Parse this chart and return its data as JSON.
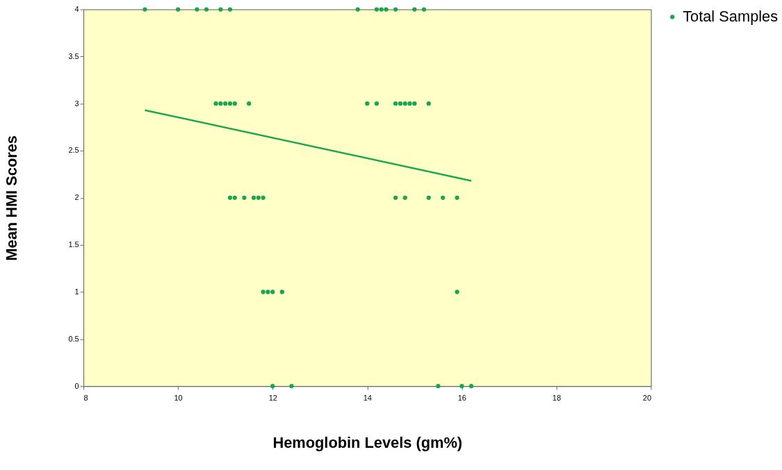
{
  "chart_data": {
    "type": "scatter",
    "xlabel": "Hemoglobin Levels (gm%)",
    "ylabel": "Mean HMI Scores",
    "xlim": [
      8,
      20
    ],
    "xticks": [
      8,
      10,
      12,
      14,
      16,
      18,
      20
    ],
    "ylim": [
      0,
      4
    ],
    "yticks": [
      0,
      0.5,
      1,
      1.5,
      2,
      2.5,
      3,
      3.5,
      4
    ],
    "grid": false,
    "legend": "right",
    "series": [
      {
        "name": "Total Samples",
        "color": "#1aa64f",
        "marker": "circle",
        "x": [
          9.3,
          10.0,
          10.4,
          10.6,
          10.9,
          11.1,
          13.8,
          14.2,
          14.3,
          14.4,
          14.6,
          15.0,
          15.2,
          10.8,
          10.9,
          11.0,
          11.1,
          11.2,
          11.5,
          14.0,
          14.2,
          14.6,
          14.7,
          14.8,
          14.9,
          15.0,
          15.3,
          11.1,
          11.2,
          11.4,
          11.6,
          11.7,
          11.8,
          14.6,
          14.8,
          15.3,
          15.6,
          15.9,
          11.8,
          11.9,
          12.0,
          12.2,
          15.9,
          12.0,
          12.4,
          15.5,
          16.0,
          16.2
        ],
        "values": [
          4,
          4,
          4,
          4,
          4,
          4,
          4,
          4,
          4,
          4,
          4,
          4,
          4,
          3,
          3,
          3,
          3,
          3,
          3,
          3,
          3,
          3,
          3,
          3,
          3,
          3,
          3,
          2,
          2,
          2,
          2,
          2,
          2,
          2,
          2,
          2,
          2,
          2,
          1,
          1,
          1,
          1,
          1,
          0,
          0,
          0,
          0,
          0
        ]
      },
      {
        "color": "#1aa64f",
        "type": "line",
        "x": [
          9.3,
          16.2
        ],
        "values": [
          2.93,
          2.18
        ]
      }
    ]
  }
}
